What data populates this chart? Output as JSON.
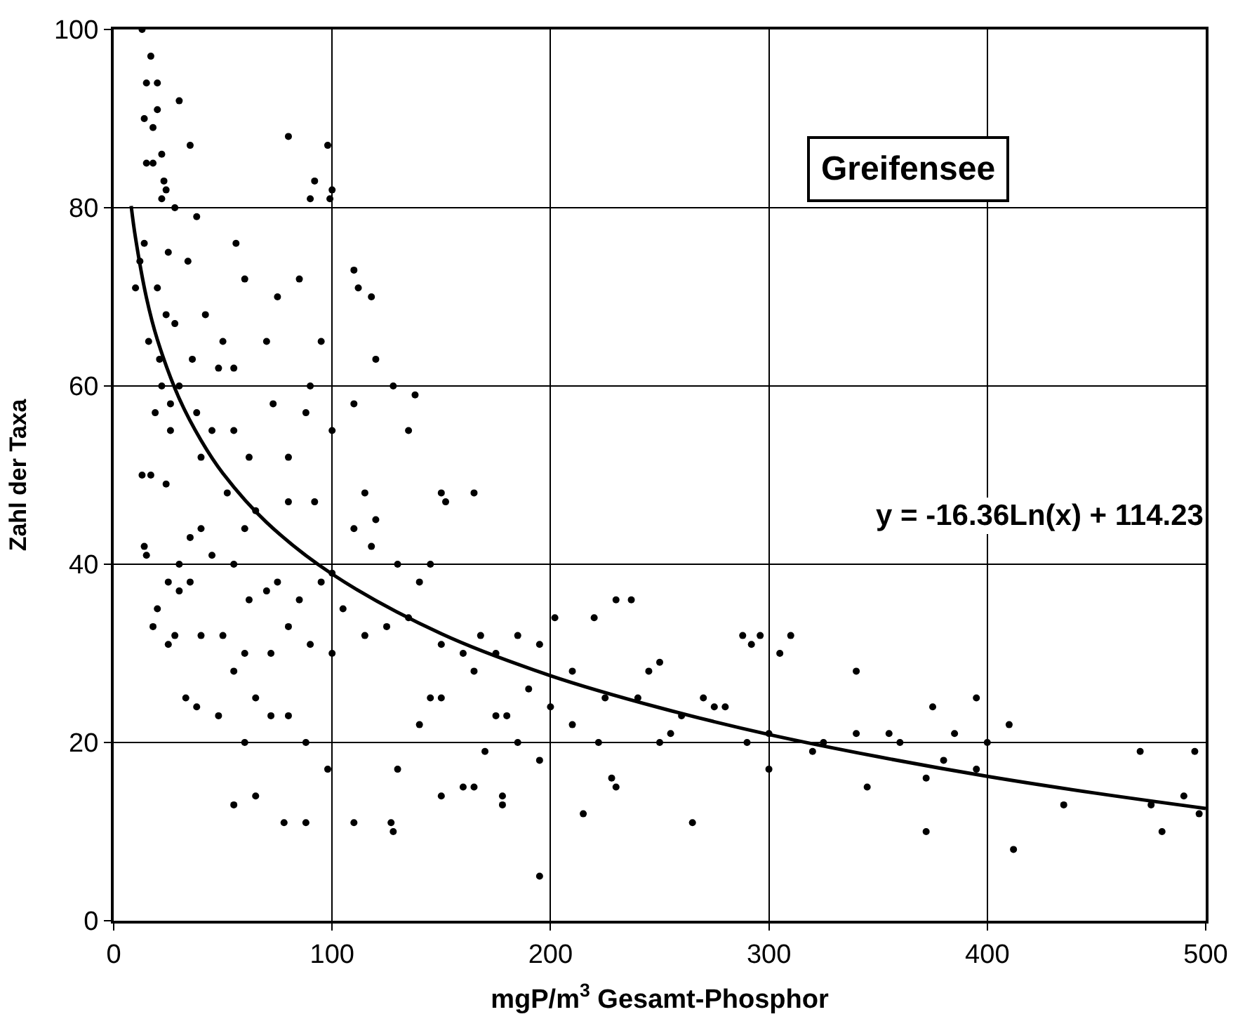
{
  "chart_data": {
    "type": "scatter",
    "xlabel": "mgP/m$^{3}$ Gesamt-Phosphor",
    "ylabel": "Zahl der Taxa",
    "xlim": [
      0,
      500
    ],
    "xticks": [
      0,
      100,
      200,
      300,
      400,
      500
    ],
    "ylim": [
      0,
      100
    ],
    "yticks": [
      0,
      20,
      40,
      60,
      80,
      100
    ],
    "grid": true,
    "marker": "circle",
    "annotations": [
      "Greifensee",
      "y = -16.36Ln(x) + 114.23"
    ],
    "series": [
      {
        "color": "#000000",
        "x": [
          13,
          17,
          15,
          20,
          14,
          20,
          18,
          22,
          23,
          30,
          35,
          22,
          24,
          28,
          38,
          15,
          18,
          14,
          25,
          12,
          34,
          20,
          10,
          24,
          28,
          16,
          21,
          36,
          30,
          22,
          26,
          38,
          19,
          26,
          17,
          24,
          13,
          42,
          50,
          60,
          56,
          80,
          98,
          90,
          92,
          100,
          99,
          75,
          85,
          110,
          112,
          118,
          120,
          128,
          135,
          138,
          110,
          100,
          70,
          55,
          48,
          73,
          88,
          62,
          80,
          90,
          95,
          45,
          55,
          40,
          52,
          65,
          40,
          60,
          80,
          92,
          115,
          150,
          165,
          152,
          120,
          110,
          118,
          130,
          145,
          14,
          15,
          30,
          35,
          45,
          25,
          30,
          35,
          55,
          62,
          70,
          75,
          85,
          95,
          100,
          105,
          20,
          28,
          40,
          50,
          60,
          72,
          80,
          90,
          100,
          115,
          125,
          135,
          140,
          150,
          160,
          168,
          175,
          185,
          195,
          202,
          210,
          220,
          230,
          237,
          245,
          250,
          260,
          270,
          275,
          288,
          292,
          296,
          305,
          310,
          340,
          355,
          375,
          380,
          395,
          385,
          400,
          410,
          470,
          495,
          480,
          490,
          475,
          497,
          340,
          345,
          372,
          372,
          412,
          435,
          18,
          25,
          33,
          38,
          48,
          55,
          65,
          72,
          80,
          88,
          98,
          55,
          60,
          65,
          78,
          88,
          110,
          127,
          128,
          150,
          160,
          165,
          178,
          178,
          195,
          195,
          215,
          222,
          228,
          230,
          265,
          300,
          250,
          170,
          185,
          140,
          130,
          145,
          150,
          165,
          175,
          180,
          190,
          200,
          210,
          225,
          240,
          255,
          280,
          290,
          300,
          320,
          325,
          360,
          395
        ],
        "values": [
          100,
          97,
          94,
          94,
          90,
          91,
          89,
          86,
          83,
          92,
          87,
          81,
          82,
          80,
          79,
          85,
          85,
          76,
          75,
          74,
          74,
          71,
          71,
          68,
          67,
          65,
          63,
          63,
          60,
          60,
          58,
          57,
          57,
          55,
          50,
          49,
          50,
          68,
          65,
          72,
          76,
          88,
          87,
          81,
          83,
          82,
          81,
          70,
          72,
          73,
          71,
          70,
          63,
          60,
          55,
          59,
          58,
          55,
          65,
          62,
          62,
          58,
          57,
          52,
          52,
          60,
          65,
          55,
          55,
          52,
          48,
          46,
          44,
          44,
          47,
          47,
          48,
          48,
          48,
          47,
          45,
          44,
          42,
          40,
          40,
          42,
          41,
          40,
          43,
          41,
          38,
          37,
          38,
          40,
          36,
          37,
          38,
          36,
          38,
          39,
          35,
          35,
          32,
          32,
          32,
          30,
          30,
          33,
          31,
          30,
          32,
          33,
          34,
          38,
          31,
          30,
          32,
          30,
          32,
          31,
          34,
          28,
          34,
          36,
          36,
          28,
          29,
          23,
          25,
          24,
          32,
          31,
          32,
          30,
          32,
          28,
          21,
          24,
          18,
          25,
          21,
          20,
          22,
          19,
          19,
          10,
          14,
          13,
          12,
          21,
          15,
          16,
          10,
          8,
          13,
          33,
          31,
          25,
          24,
          23,
          28,
          25,
          23,
          23,
          20,
          17,
          13,
          20,
          14,
          11,
          11,
          11,
          11,
          10,
          14,
          15,
          15,
          13,
          14,
          5,
          18,
          12,
          20,
          16,
          15,
          11,
          17,
          20,
          19,
          20,
          22,
          17,
          25,
          25,
          28,
          23,
          23,
          26,
          24,
          22,
          25,
          25,
          21,
          24,
          20,
          21,
          19,
          20,
          20,
          17
        ]
      },
      {
        "color": "#000000",
        "type": "line",
        "marker": "none",
        "x": [
          8,
          10,
          15,
          20,
          30,
          40,
          50,
          70,
          100,
          150,
          200,
          250,
          300,
          350,
          400,
          450,
          500
        ],
        "values": [
          80.2,
          76.6,
          69.9,
          65.2,
          58.6,
          53.9,
          50.2,
          44.7,
          38.9,
          32.2,
          27.5,
          23.9,
          20.9,
          18.4,
          16.2,
          14.3,
          12.6
        ]
      }
    ]
  }
}
